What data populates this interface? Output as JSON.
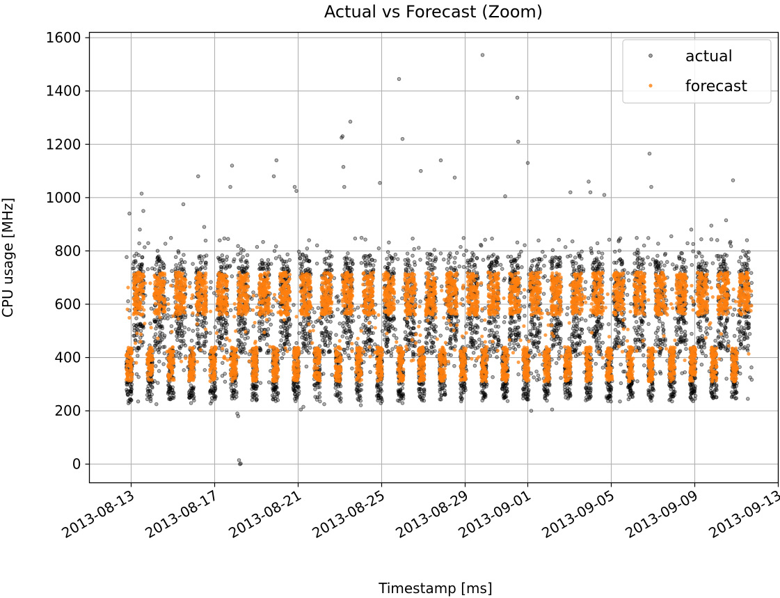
{
  "chart_data": {
    "type": "scatter",
    "title": "Actual vs Forecast (Zoom)",
    "xlabel": "Timestamp [ms]",
    "ylabel": "CPU usage [MHz]",
    "xlim": [
      "2013-08-11",
      "2013-09-13"
    ],
    "ylim": [
      -70,
      1620
    ],
    "x_ticks": [
      "2013-08-13",
      "2013-08-17",
      "2013-08-21",
      "2013-08-25",
      "2013-08-29",
      "2013-09-01",
      "2013-09-05",
      "2013-09-09",
      "2013-09-13"
    ],
    "y_ticks": [
      "0",
      "200",
      "400",
      "600",
      "800",
      "1000",
      "1200",
      "1400",
      "1600"
    ],
    "y_tick_values": [
      0,
      200,
      400,
      600,
      800,
      1000,
      1200,
      1400,
      1600
    ],
    "grid": true,
    "legend_position": "upper right",
    "x_start": "2013-08-12T18:00",
    "x_end": "2013-09-11T18:00",
    "series": [
      {
        "name": "actual",
        "color": "#000000",
        "marker": "circle-open",
        "points": [
          [
            "2013-08-12T22:00",
            940
          ],
          [
            "2013-08-13T10:00",
            880
          ],
          [
            "2013-08-13T12:00",
            1015
          ],
          [
            "2013-08-13T14:00",
            950
          ],
          [
            "2013-08-13T08:00",
            235
          ],
          [
            "2013-08-14T05:00",
            225
          ],
          [
            "2013-08-15T12:00",
            975
          ],
          [
            "2013-08-16T05:00",
            1080
          ],
          [
            "2013-08-16T12:00",
            890
          ],
          [
            "2013-08-17T20:00",
            1120
          ],
          [
            "2013-08-17T18:00",
            1040
          ],
          [
            "2013-08-18T02:00",
            190
          ],
          [
            "2013-08-18T03:00",
            180
          ],
          [
            "2013-08-18T04:00",
            15
          ],
          [
            "2013-08-18T05:00",
            0
          ],
          [
            "2013-08-18T06:00",
            2
          ],
          [
            "2013-08-19T20:00",
            1080
          ],
          [
            "2013-08-19T23:00",
            1140
          ],
          [
            "2013-08-20T20:00",
            1040
          ],
          [
            "2013-08-20T22:00",
            1025
          ],
          [
            "2013-08-21T03:00",
            205
          ],
          [
            "2013-08-21T06:00",
            215
          ],
          [
            "2013-08-22T06:00",
            225
          ],
          [
            "2013-08-23T02:00",
            1225
          ],
          [
            "2013-08-23T03:00",
            1230
          ],
          [
            "2013-08-23T04:00",
            1115
          ],
          [
            "2013-08-23T05:00",
            1040
          ],
          [
            "2013-08-23T12:00",
            1285
          ],
          [
            "2013-08-24T22:00",
            1055
          ],
          [
            "2013-08-25T20:00",
            1445
          ],
          [
            "2013-08-26T00:00",
            1220
          ],
          [
            "2013-08-26T21:00",
            1100
          ],
          [
            "2013-08-27T20:00",
            1140
          ],
          [
            "2013-08-28T12:00",
            1075
          ],
          [
            "2013-08-29T20:00",
            1535
          ],
          [
            "2013-08-30T22:00",
            1005
          ],
          [
            "2013-08-31T12:00",
            1375
          ],
          [
            "2013-08-31T13:00",
            1210
          ],
          [
            "2013-09-01T00:00",
            1130
          ],
          [
            "2013-09-01T04:00",
            200
          ],
          [
            "2013-09-02T04:00",
            205
          ],
          [
            "2013-09-03T01:00",
            1020
          ],
          [
            "2013-09-03T22:00",
            1060
          ],
          [
            "2013-09-04T00:00",
            1020
          ],
          [
            "2013-09-04T16:00",
            1010
          ],
          [
            "2013-09-05T10:00",
            235
          ],
          [
            "2013-09-06T20:00",
            1165
          ],
          [
            "2013-09-06T22:00",
            1040
          ],
          [
            "2013-09-07T21:00",
            855
          ],
          [
            "2013-09-08T20:00",
            880
          ],
          [
            "2013-09-09T19:00",
            895
          ],
          [
            "2013-09-10T12:00",
            915
          ],
          [
            "2013-09-10T20:00",
            1065
          ],
          [
            "2013-09-11T12:00",
            840
          ],
          [
            "2013-09-11T13:00",
            245
          ]
        ]
      },
      {
        "name": "forecast",
        "color": "#ff7f0e",
        "marker": "circle"
      }
    ]
  }
}
